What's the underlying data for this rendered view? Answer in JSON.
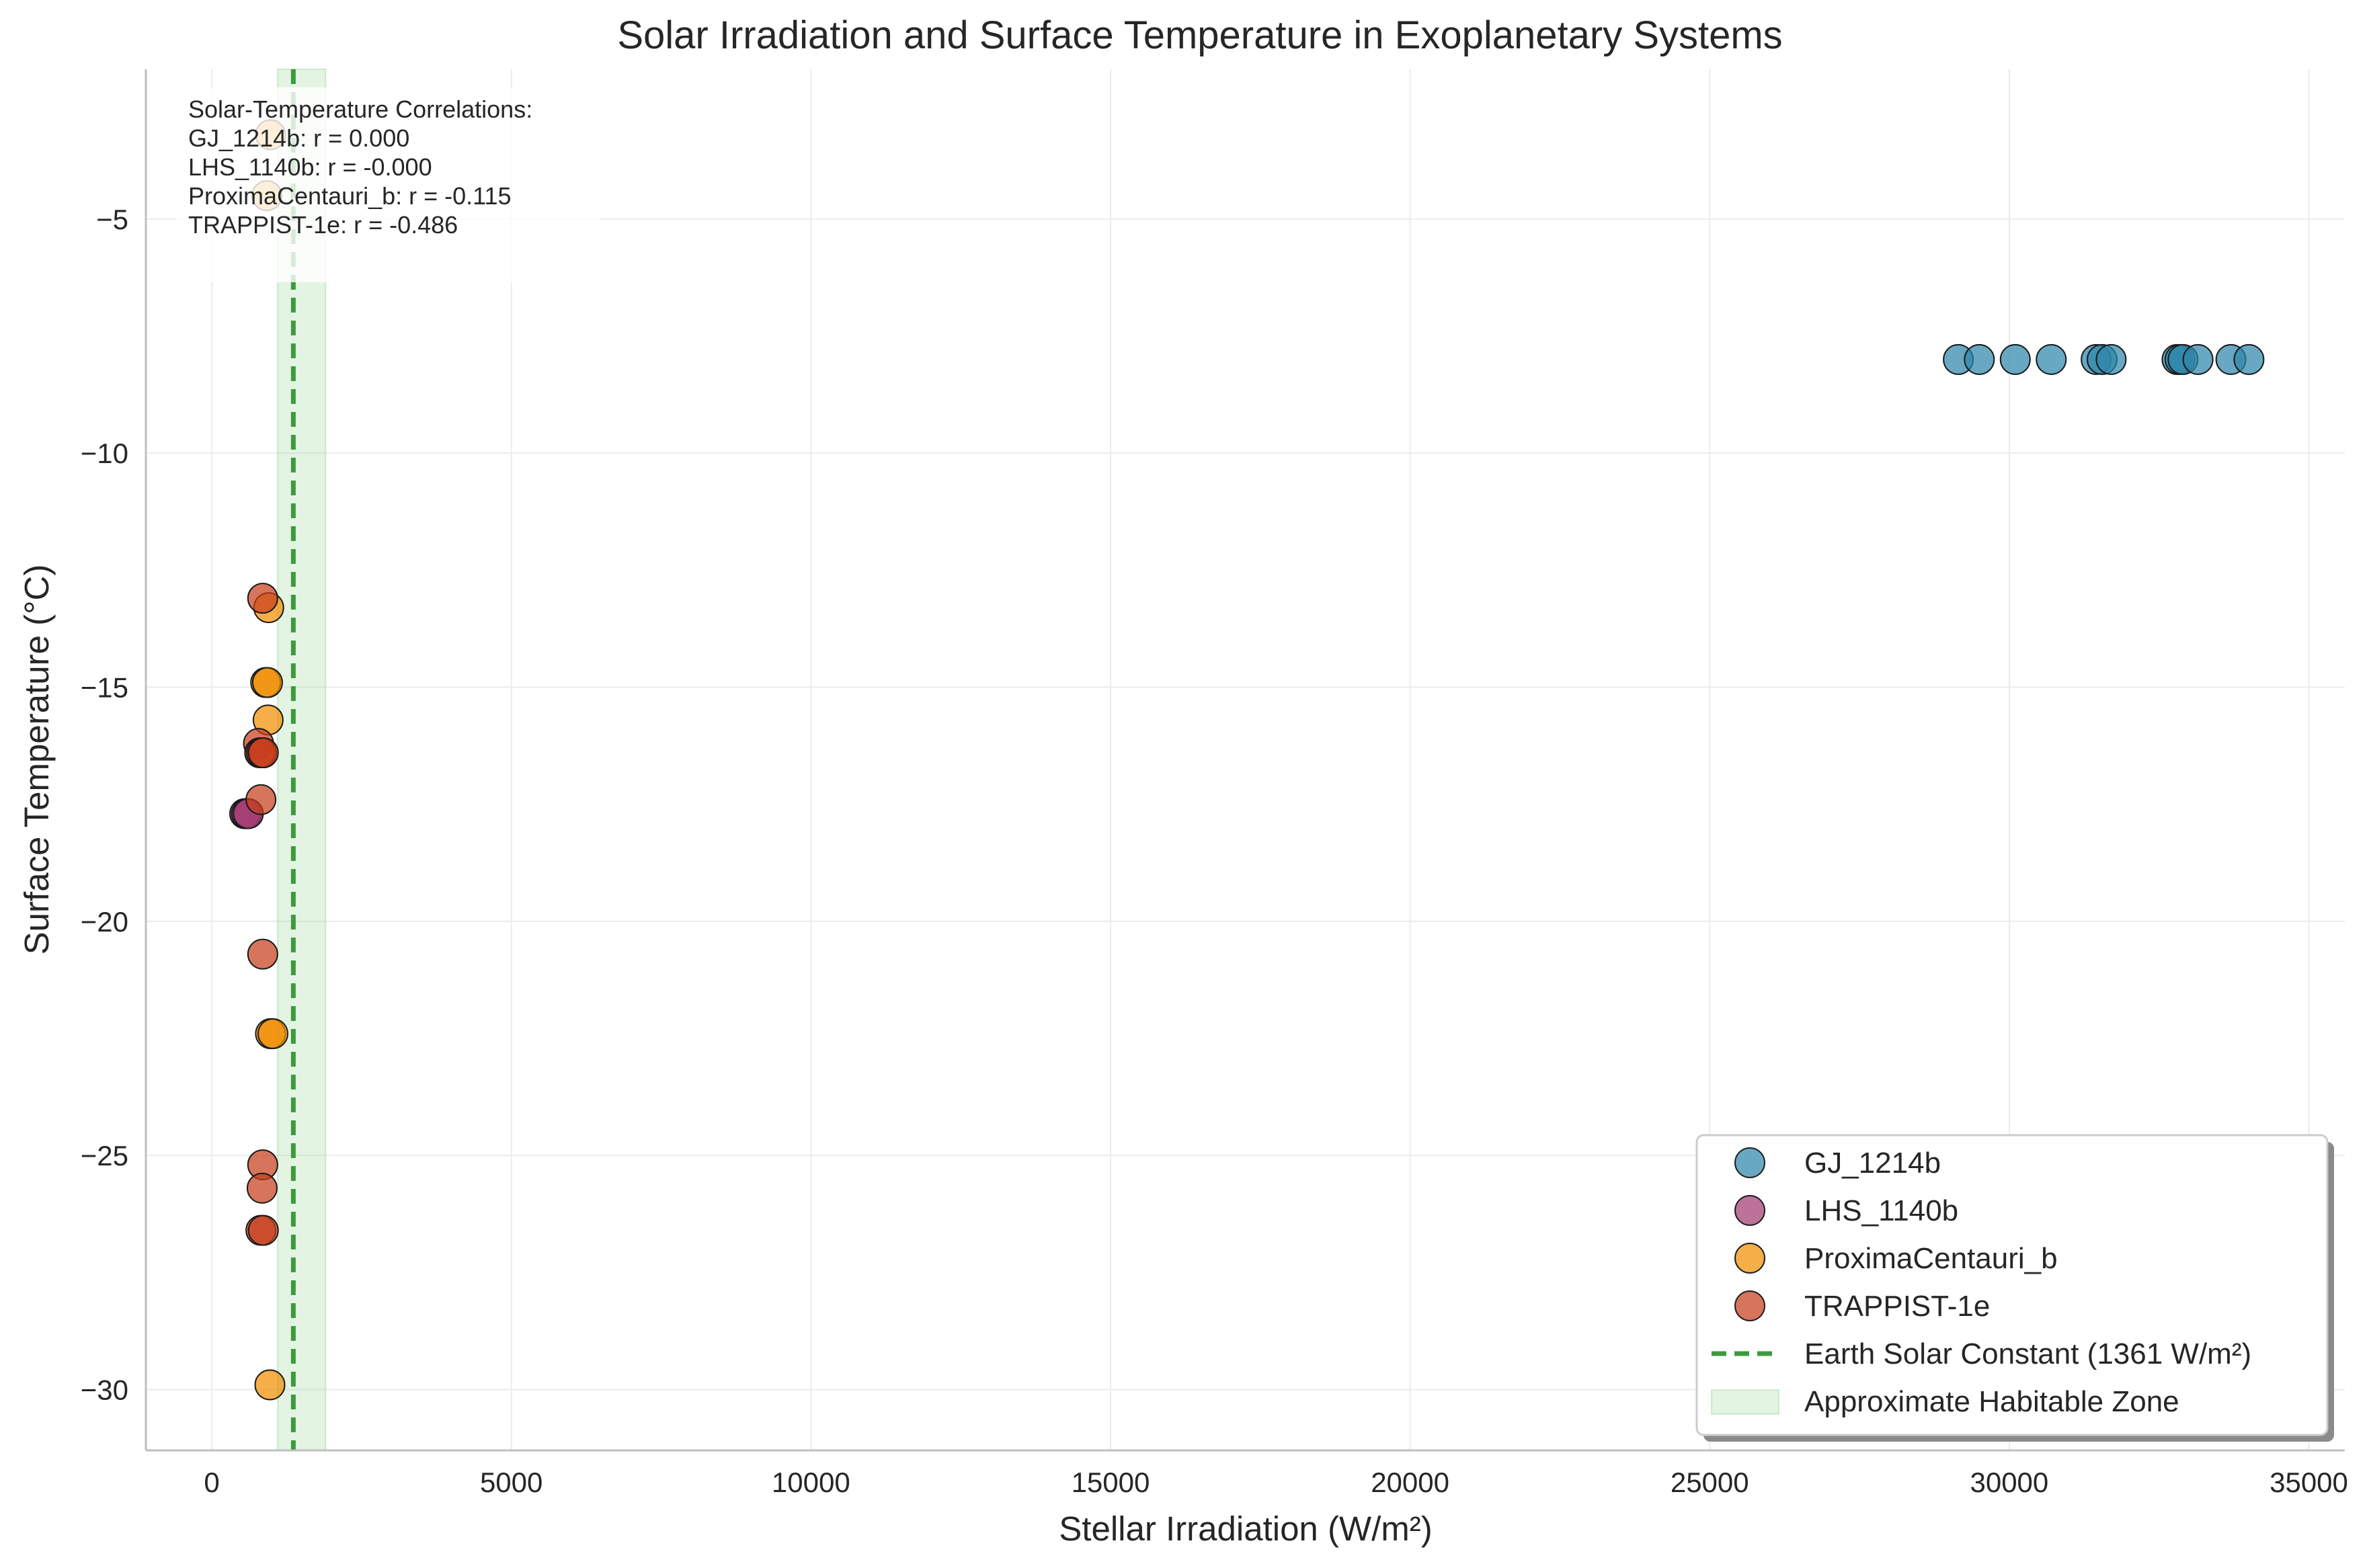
{
  "chart_data": {
    "type": "scatter",
    "title": "Solar Irradiation and Surface Temperature in Exoplanetary Systems",
    "xlabel": "Stellar Irradiation (W/m²)",
    "ylabel": "Surface Temperature (°C)",
    "xlim": [
      -1100,
      35600
    ],
    "ylim": [
      -31.3,
      -1.8
    ],
    "xticks": [
      0,
      5000,
      10000,
      15000,
      20000,
      25000,
      30000,
      35000
    ],
    "yticks": [
      -5,
      -10,
      -15,
      -20,
      -25,
      -30
    ],
    "grid": true,
    "legend_position": "lower right",
    "series": [
      {
        "name": "GJ_1214b",
        "color": "#2E86AB",
        "points": [
          {
            "x": 29150,
            "y": -8.0
          },
          {
            "x": 29500,
            "y": -8.0
          },
          {
            "x": 30100,
            "y": -8.0
          },
          {
            "x": 30700,
            "y": -8.0
          },
          {
            "x": 31450,
            "y": -8.0
          },
          {
            "x": 31550,
            "y": -8.0
          },
          {
            "x": 31700,
            "y": -8.0
          },
          {
            "x": 32800,
            "y": -8.0
          },
          {
            "x": 32850,
            "y": -8.0
          },
          {
            "x": 32900,
            "y": -8.0
          },
          {
            "x": 33150,
            "y": -8.0
          },
          {
            "x": 33700,
            "y": -8.0
          },
          {
            "x": 34000,
            "y": -8.0
          }
        ]
      },
      {
        "name": "LHS_1140b",
        "color": "#A23B72",
        "points": [
          {
            "x": 550,
            "y": -17.7
          },
          {
            "x": 580,
            "y": -17.7
          },
          {
            "x": 610,
            "y": -17.7
          }
        ]
      },
      {
        "name": "ProximaCentauri_b",
        "color": "#F18F01",
        "points": [
          {
            "x": 980,
            "y": -3.2
          },
          {
            "x": 920,
            "y": -4.5
          },
          {
            "x": 950,
            "y": -13.3
          },
          {
            "x": 900,
            "y": -14.9
          },
          {
            "x": 930,
            "y": -14.9
          },
          {
            "x": 940,
            "y": -15.7
          },
          {
            "x": 980,
            "y": -22.4
          },
          {
            "x": 1020,
            "y": -22.4
          },
          {
            "x": 970,
            "y": -29.9
          }
        ]
      },
      {
        "name": "TRAPPIST-1e",
        "color": "#C73E1D",
        "points": [
          {
            "x": 850,
            "y": -13.1
          },
          {
            "x": 780,
            "y": -16.2
          },
          {
            "x": 800,
            "y": -16.4
          },
          {
            "x": 830,
            "y": -16.4
          },
          {
            "x": 860,
            "y": -16.4
          },
          {
            "x": 820,
            "y": -17.4
          },
          {
            "x": 850,
            "y": -20.7
          },
          {
            "x": 850,
            "y": -25.2
          },
          {
            "x": 840,
            "y": -25.7
          },
          {
            "x": 820,
            "y": -26.6
          },
          {
            "x": 860,
            "y": -26.6
          }
        ]
      }
    ],
    "reference_line": {
      "label": "Earth Solar Constant (1361 W/m²)",
      "x": 1361,
      "color": "#3d9a3d"
    },
    "shaded_region": {
      "label": "Approximate Habitable Zone",
      "x": [
        1100,
        1900
      ],
      "color": "#90d490"
    },
    "annotation": {
      "heading": "Solar-Temperature Correlations:",
      "lines": [
        "GJ_1214b: r = 0.000",
        "LHS_1140b: r = -0.000",
        "ProximaCentauri_b: r = -0.115",
        "TRAPPIST-1e: r = -0.486"
      ]
    }
  }
}
